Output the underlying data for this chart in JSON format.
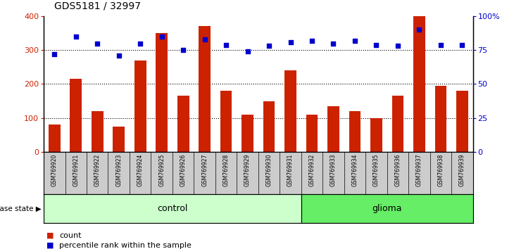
{
  "title": "GDS5181 / 32997",
  "samples": [
    "GSM769920",
    "GSM769921",
    "GSM769922",
    "GSM769923",
    "GSM769924",
    "GSM769925",
    "GSM769926",
    "GSM769927",
    "GSM769928",
    "GSM769929",
    "GSM769930",
    "GSM769931",
    "GSM769932",
    "GSM769933",
    "GSM769934",
    "GSM769935",
    "GSM769936",
    "GSM769937",
    "GSM769938",
    "GSM769939"
  ],
  "counts": [
    80,
    215,
    120,
    75,
    270,
    350,
    165,
    370,
    180,
    110,
    150,
    240,
    110,
    135,
    120,
    100,
    165,
    400,
    195,
    180
  ],
  "percentiles": [
    72,
    85,
    80,
    71,
    80,
    85,
    75,
    83,
    79,
    74,
    78,
    81,
    82,
    80,
    82,
    79,
    78,
    90,
    79,
    79
  ],
  "bar_color": "#cc2200",
  "dot_color": "#0000cc",
  "control_count": 12,
  "control_label": "control",
  "glioma_label": "glioma",
  "control_color": "#ccffcc",
  "glioma_color": "#66ee66",
  "disease_state_label": "disease state",
  "ylim_left": [
    0,
    400
  ],
  "ylim_right": [
    0,
    100
  ],
  "yticks_left": [
    0,
    100,
    200,
    300,
    400
  ],
  "yticks_right": [
    0,
    25,
    50,
    75,
    100
  ],
  "ytick_labels_right": [
    "0",
    "25",
    "50",
    "75",
    "100%"
  ],
  "legend_count_label": "count",
  "legend_pct_label": "percentile rank within the sample",
  "title_fontsize": 10,
  "bar_width": 0.55
}
